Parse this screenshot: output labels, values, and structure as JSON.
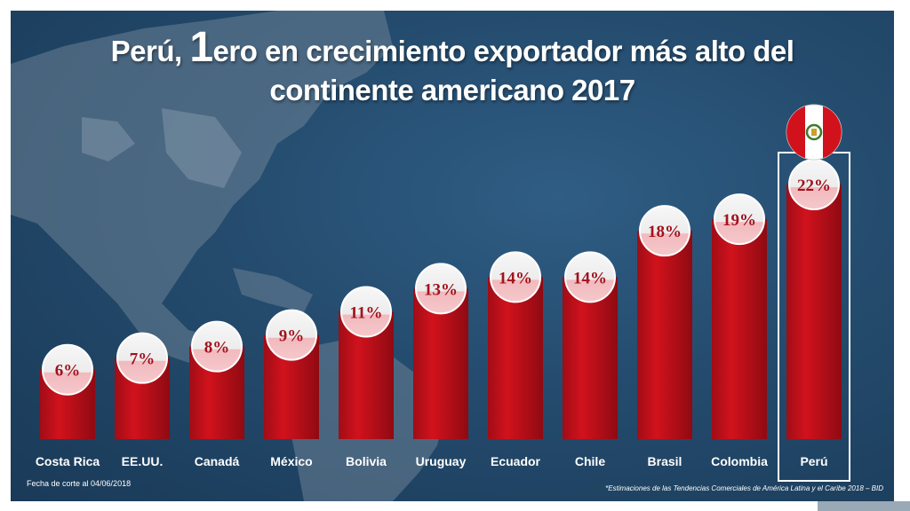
{
  "title": {
    "part1": "Perú, ",
    "ordinal": "1",
    "part2": "ero en crecimiento exportador más alto del",
    "line2": "continente americano 2017"
  },
  "footnote": "Fecha de corte al 04/06/2018",
  "source": "*Estimaciones de las Tendencias Comerciales de América Latina y el Caribe 2018 – BID",
  "colors": {
    "bar": "#d1121d",
    "bar_dark": "#8f0a12",
    "highlight_border": "#ffffff",
    "value_text": "#a3111c"
  },
  "chart_data": {
    "type": "bar",
    "categories": [
      "Costa Rica",
      "EE.UU.",
      "Canadá",
      "México",
      "Bolivia",
      "Uruguay",
      "Ecuador",
      "Chile",
      "Brasil",
      "Colombia",
      "Perú"
    ],
    "values": [
      6,
      7,
      8,
      9,
      11,
      13,
      14,
      14,
      18,
      19,
      22
    ],
    "value_labels": [
      "6%",
      "7%",
      "8%",
      "9%",
      "11%",
      "13%",
      "14%",
      "14%",
      "18%",
      "19%",
      "22%"
    ],
    "highlight": "Perú",
    "highlight_icon": "peru-flag-icon",
    "ylim": [
      0,
      22
    ],
    "grid": false,
    "legend": "none"
  }
}
